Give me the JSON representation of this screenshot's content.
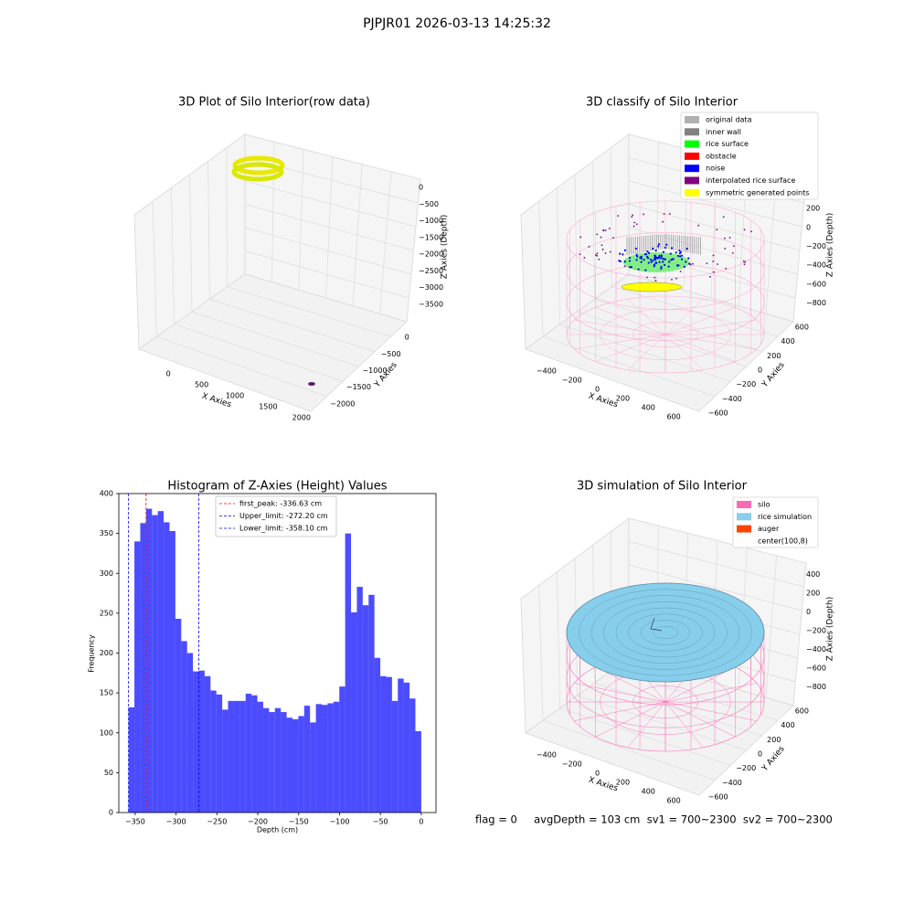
{
  "title": "PJPJR01 2026-03-13 14:25:32",
  "status": "flag = 0     avgDepth = 103 cm  sv1 = 700~2300  sv2 = 700~2300",
  "chart_data": [
    {
      "type": "scatter3d",
      "title": "3D Plot of Silo Interior(row data)",
      "xlabel": "X Axies",
      "ylabel": "Y Axies",
      "zlabel": "Z Axies (Depth)",
      "xlim": [
        -250,
        2250
      ],
      "ylim": [
        250,
        -2250
      ],
      "zlim": [
        250,
        -3750
      ],
      "xticks": [
        0,
        500,
        1000,
        1500,
        2000
      ],
      "yticks": [
        0,
        {
          "value": -500,
          "label": "−500"
        },
        {
          "value": -1000,
          "label": "−1000"
        },
        {
          "value": -1500,
          "label": "−1500"
        },
        {
          "value": -2000,
          "label": "−2000"
        }
      ],
      "zticks": [
        0,
        {
          "value": -500,
          "label": "−500"
        },
        {
          "value": -1000,
          "label": "−1000"
        },
        {
          "value": -1500,
          "label": "−1500"
        },
        {
          "value": -2000,
          "label": "−2000"
        },
        {
          "value": -2500,
          "label": "−2500"
        },
        {
          "value": -3000,
          "label": "−3000"
        },
        {
          "value": -3500,
          "label": "−3500"
        }
      ]
    },
    {
      "type": "scatter3d",
      "title": "3D classify of Silo Interior",
      "xlabel": "X Axies",
      "ylabel": "Y Axies",
      "zlabel": "Z Axies (Depth)",
      "xlim": [
        -500,
        700
      ],
      "ylim": [
        -700,
        700
      ],
      "zlim": [
        500,
        -900
      ],
      "xticks": [
        {
          "value": -400,
          "label": "−400"
        },
        {
          "value": -200,
          "label": "−200"
        },
        0,
        200,
        400,
        600
      ],
      "yticks": [
        {
          "value": -600,
          "label": "−600"
        },
        {
          "value": -400,
          "label": "−400"
        },
        {
          "value": -200,
          "label": "−200"
        },
        0,
        200,
        400,
        600
      ],
      "zticks": [
        200,
        0,
        {
          "value": -200,
          "label": "−200"
        },
        {
          "value": -400,
          "label": "−400"
        },
        {
          "value": -600,
          "label": "−600"
        },
        {
          "value": -800,
          "label": "−800"
        }
      ],
      "legend": [
        {
          "name": "original data",
          "color": "#b0b0b0"
        },
        {
          "name": "inner wall",
          "color": "#808080"
        },
        {
          "name": "rice surface",
          "color": "#00ff00"
        },
        {
          "name": "obstacle",
          "color": "#ff0000"
        },
        {
          "name": "noise",
          "color": "#0000ff"
        },
        {
          "name": "interpolated rice surface",
          "color": "#800080"
        },
        {
          "name": "symmetric generated points",
          "color": "#ffff00"
        }
      ]
    },
    {
      "type": "histogram",
      "title": "Histogram of Z-Axies (Height) Values",
      "xlabel": "Depth (cm)",
      "ylabel": "Frequency",
      "color": "#0000ff",
      "alpha": 0.7,
      "bins": [
        -358.1,
        -350.94,
        -343.78,
        -336.61,
        -329.45,
        -322.29,
        -315.13,
        -307.97,
        -300.8,
        -293.64,
        -286.48,
        -279.32,
        -272.16,
        -264.99,
        -257.83,
        -250.67,
        -243.51,
        -236.35,
        -229.18,
        -222.02,
        -214.86,
        -207.7,
        -200.54,
        -193.37,
        -186.21,
        -179.05,
        -171.89,
        -164.73,
        -157.56,
        -150.4,
        -143.24,
        -136.08,
        -128.92,
        -121.75,
        -114.59,
        -107.43,
        -100.27,
        -93.11,
        -85.94,
        -78.78,
        -71.62,
        -64.46,
        -57.3,
        -50.13,
        -42.97,
        -35.81,
        -28.65,
        -21.49,
        -14.32,
        -7.16,
        0
      ],
      "values": [
        132,
        340,
        363,
        381,
        373,
        378,
        364,
        353,
        243,
        215,
        200,
        177,
        178,
        171,
        153,
        148,
        129,
        140,
        140,
        140,
        149,
        147,
        139,
        131,
        126,
        131,
        126,
        119,
        117,
        121,
        134,
        113,
        136,
        135,
        137,
        139,
        158,
        350,
        251,
        283,
        260,
        273,
        194,
        171,
        170,
        140,
        168,
        163,
        143,
        102
      ],
      "xlim": [
        -370,
        18
      ],
      "ylim": [
        0,
        400
      ],
      "xticks": [
        {
          "value": -350,
          "label": "−350"
        },
        {
          "value": -300,
          "label": "−300"
        },
        {
          "value": -250,
          "label": "−250"
        },
        {
          "value": -200,
          "label": "−200"
        },
        {
          "value": -150,
          "label": "−150"
        },
        {
          "value": -100,
          "label": "−100"
        },
        {
          "value": -50,
          "label": "−50"
        },
        0
      ],
      "yticks": [
        0,
        50,
        100,
        150,
        200,
        250,
        300,
        350,
        400
      ],
      "vlines": [
        {
          "label": "first_peak: -336.63 cm",
          "value": -336.63,
          "color": "#ff0000"
        },
        {
          "label": "Upper_limit: -272.20 cm",
          "value": -272.2,
          "color": "#0000ff"
        },
        {
          "label": "Lower_limit: -358.10 cm",
          "value": -358.1,
          "color": "#0000ff"
        }
      ]
    },
    {
      "type": "scatter3d",
      "title": "3D simulation of Silo Interior",
      "xlabel": "X Axies",
      "ylabel": "Y Axies",
      "zlabel": "Z Axies (Depth)",
      "xlim": [
        -500,
        700
      ],
      "ylim": [
        -700,
        700
      ],
      "zlim": [
        500,
        -900
      ],
      "xticks": [
        {
          "value": -400,
          "label": "−400"
        },
        {
          "value": -200,
          "label": "−200"
        },
        0,
        200,
        400,
        600
      ],
      "yticks": [
        {
          "value": -600,
          "label": "−600"
        },
        {
          "value": -400,
          "label": "−400"
        },
        {
          "value": -200,
          "label": "−200"
        },
        0,
        200,
        400,
        600
      ],
      "zticks": [
        400,
        200,
        0,
        {
          "value": -200,
          "label": "−200"
        },
        {
          "value": -400,
          "label": "−400"
        },
        {
          "value": -600,
          "label": "−600"
        },
        {
          "value": -800,
          "label": "−800"
        }
      ],
      "legend": [
        {
          "name": "silo",
          "color": "#ff69b4"
        },
        {
          "name": "rice simulation",
          "color": "#87ceeb"
        },
        {
          "name": "auger",
          "color": "#ff4500"
        },
        {
          "name": "center(100,8)",
          "color": "#ffffff"
        }
      ]
    }
  ]
}
